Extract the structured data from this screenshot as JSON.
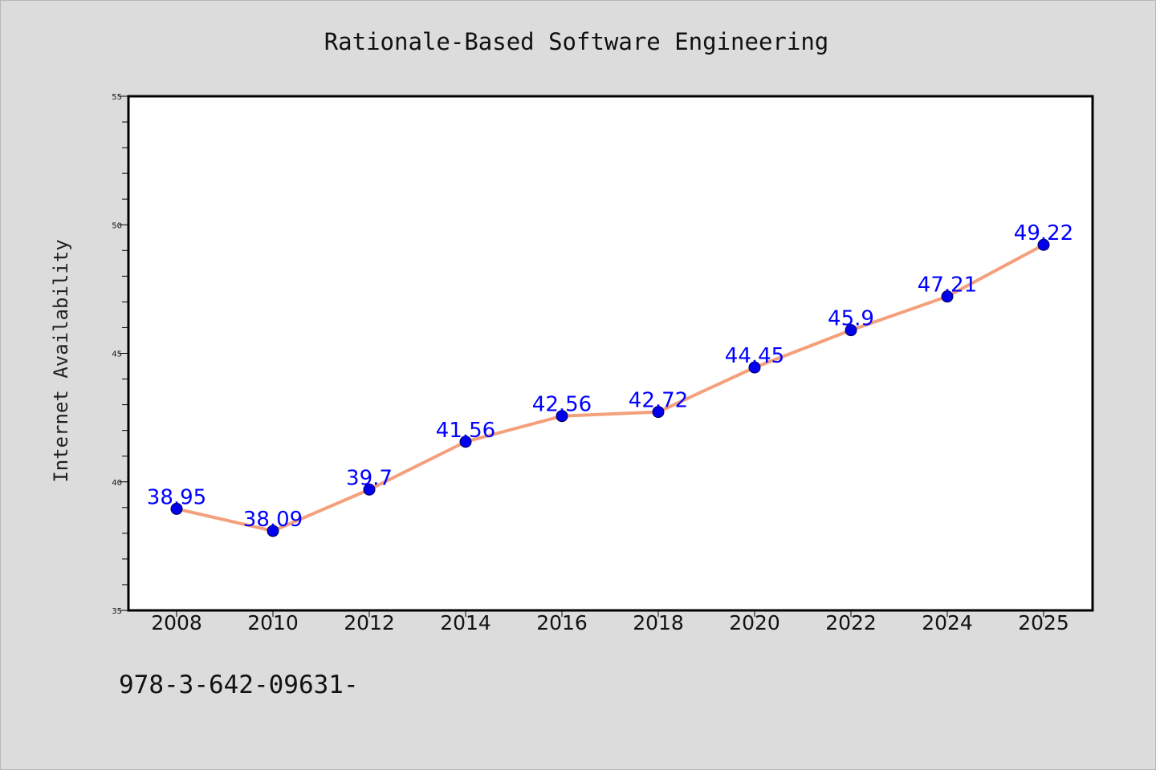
{
  "chart_data": {
    "type": "line",
    "title": "Rationale-Based Software Engineering",
    "xlabel": "",
    "ylabel": "Internet Availability",
    "categories": [
      "2008",
      "2010",
      "2012",
      "2014",
      "2016",
      "2018",
      "2020",
      "2022",
      "2024",
      "2025"
    ],
    "series": [
      {
        "values": [
          38.95,
          38.09,
          39.7,
          41.56,
          42.56,
          42.72,
          44.45,
          45.9,
          47.21,
          49.22
        ],
        "data_labels": [
          "38.95",
          "38.09",
          "39.7",
          "41.56",
          "42.56",
          "42.72",
          "44.45",
          "45.9",
          "47.21",
          "49.22"
        ]
      }
    ],
    "ylim": [
      35,
      55
    ],
    "y_ticks": [
      "35",
      "40",
      "45",
      "50",
      "55"
    ],
    "grid": false,
    "colors": {
      "line": "#f4a07c",
      "marker": "#0000ee",
      "label": "#0000ff",
      "background": "#dcdcdc",
      "plot_area": "#ffffff"
    }
  },
  "footnote": "978-3-642-09631-"
}
